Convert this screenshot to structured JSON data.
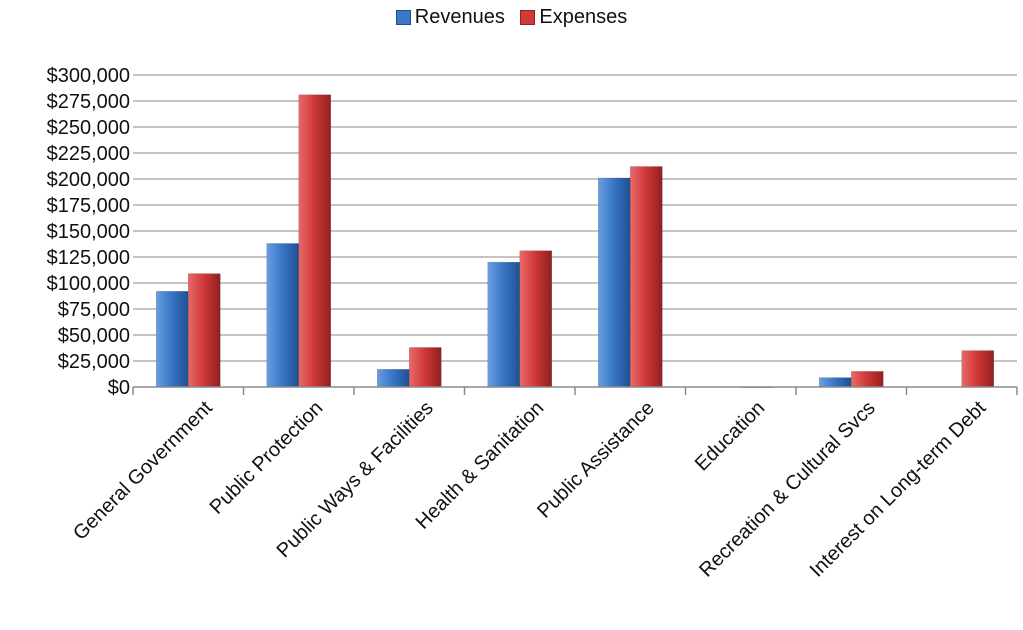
{
  "chart_data": {
    "type": "bar",
    "categories": [
      "General Government",
      "Public Protection",
      "Public Ways & Facilities",
      "Health & Sanitation",
      "Public Assistance",
      "Education",
      "Recreation & Cultural Svcs",
      "Interest on Long-term Debt"
    ],
    "series": [
      {
        "name": "Revenues",
        "color": "#3a78c9",
        "values": [
          92000,
          138000,
          17000,
          120000,
          201000,
          0,
          9000,
          0
        ]
      },
      {
        "name": "Expenses",
        "color": "#d23a3a",
        "values": [
          109000,
          281000,
          38000,
          131000,
          212000,
          300,
          15000,
          35000
        ]
      }
    ],
    "yticks": [
      "$0",
      "$25,000",
      "$50,000",
      "$75,000",
      "$100,000",
      "$125,000",
      "$150,000",
      "$175,000",
      "$200,000",
      "$225,000",
      "$250,000",
      "$275,000",
      "$300,000"
    ],
    "ylim": [
      0,
      300000
    ],
    "ystep": 25000,
    "legend_position": "top-center",
    "grid": true
  }
}
